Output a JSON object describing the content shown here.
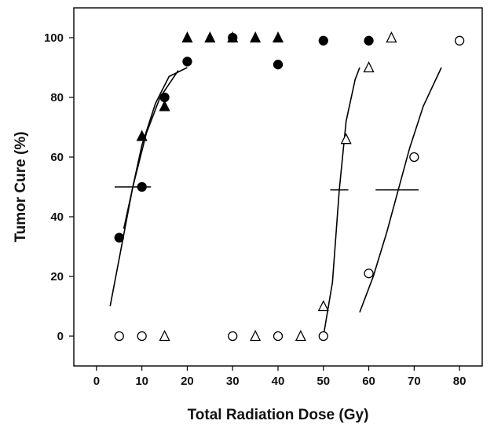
{
  "chart_data": {
    "type": "scatter",
    "title": "",
    "xlabel": "Total Radiation Dose (Gy)",
    "ylabel": "Tumor Cure (%)",
    "xlim": [
      -5,
      85
    ],
    "ylim": [
      -10,
      110
    ],
    "xticks": [
      0,
      10,
      20,
      30,
      40,
      50,
      60,
      70,
      80
    ],
    "yticks": [
      0,
      20,
      40,
      60,
      80,
      100
    ],
    "grid": false,
    "legend": "none",
    "series": [
      {
        "marker": "filled-triangle",
        "color": "#000000",
        "points": [
          [
            10,
            67
          ],
          [
            15,
            77
          ],
          [
            20,
            100
          ],
          [
            25,
            100
          ],
          [
            30,
            100
          ],
          [
            35,
            100
          ],
          [
            40,
            100
          ]
        ]
      },
      {
        "marker": "filled-circle",
        "color": "#000000",
        "points": [
          [
            5,
            33
          ],
          [
            10,
            50
          ],
          [
            15,
            80
          ],
          [
            20,
            92
          ],
          [
            30,
            100
          ],
          [
            40,
            91
          ],
          [
            50,
            99
          ],
          [
            60,
            99
          ]
        ]
      },
      {
        "marker": "open-triangle",
        "color": "#000000",
        "points": [
          [
            15,
            0
          ],
          [
            35,
            0
          ],
          [
            45,
            0
          ],
          [
            50,
            10
          ],
          [
            55,
            66
          ],
          [
            60,
            90
          ],
          [
            65,
            100
          ]
        ]
      },
      {
        "marker": "open-circle",
        "color": "#000000",
        "points": [
          [
            5,
            0
          ],
          [
            10,
            0
          ],
          [
            30,
            0
          ],
          [
            40,
            0
          ],
          [
            50,
            0
          ],
          [
            60,
            21
          ],
          [
            70,
            60
          ],
          [
            80,
            99
          ]
        ]
      }
    ],
    "fit_curves": [
      [
        [
          3,
          10
        ],
        [
          5,
          26
        ],
        [
          8,
          50
        ],
        [
          11,
          68
        ],
        [
          14,
          80
        ],
        [
          18,
          89
        ]
      ],
      [
        [
          6,
          36
        ],
        [
          8,
          50
        ],
        [
          10,
          64
        ],
        [
          13,
          78
        ],
        [
          16,
          87
        ],
        [
          20,
          90
        ]
      ],
      [
        [
          50,
          0
        ],
        [
          52,
          18
        ],
        [
          53.5,
          49
        ],
        [
          55,
          72
        ],
        [
          57,
          86
        ],
        [
          58,
          90
        ]
      ],
      [
        [
          58,
          8
        ],
        [
          61,
          20
        ],
        [
          64,
          35
        ],
        [
          66.5,
          49
        ],
        [
          69,
          63
        ],
        [
          72,
          77
        ],
        [
          76,
          90
        ]
      ]
    ],
    "tcd50_marks": [
      {
        "y": 50,
        "x1": 4,
        "x2": 12
      },
      {
        "y": 49,
        "x1": 51.5,
        "x2": 55.5
      },
      {
        "y": 49,
        "x1": 61.5,
        "x2": 71
      }
    ],
    "colors": {
      "marks": "#000000",
      "axis": "#000000",
      "background": "#ffffff"
    }
  }
}
